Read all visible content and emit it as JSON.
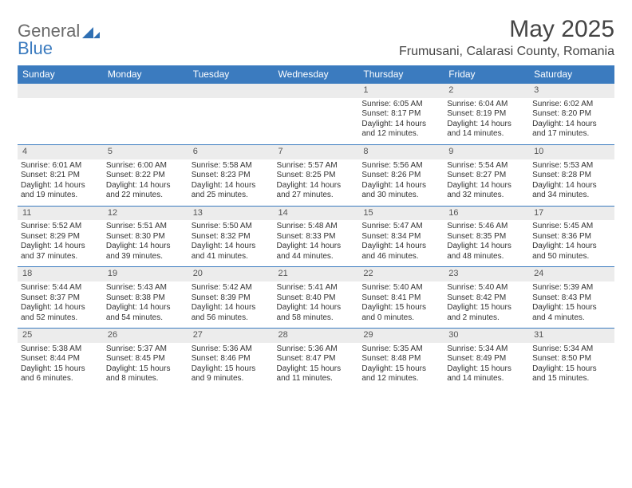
{
  "logo": {
    "text1": "General",
    "text2": "Blue"
  },
  "title": "May 2025",
  "location": "Frumusani, Calarasi County, Romania",
  "colors": {
    "header_bg": "#3b7bbf",
    "header_txt": "#ffffff",
    "daynum_bg": "#ececec",
    "border": "#3b7bbf"
  },
  "columns": [
    "Sunday",
    "Monday",
    "Tuesday",
    "Wednesday",
    "Thursday",
    "Friday",
    "Saturday"
  ],
  "weeks": [
    [
      null,
      null,
      null,
      null,
      {
        "n": "1",
        "sr": "6:05 AM",
        "ss": "8:17 PM",
        "dl": "14 hours and 12 minutes."
      },
      {
        "n": "2",
        "sr": "6:04 AM",
        "ss": "8:19 PM",
        "dl": "14 hours and 14 minutes."
      },
      {
        "n": "3",
        "sr": "6:02 AM",
        "ss": "8:20 PM",
        "dl": "14 hours and 17 minutes."
      }
    ],
    [
      {
        "n": "4",
        "sr": "6:01 AM",
        "ss": "8:21 PM",
        "dl": "14 hours and 19 minutes."
      },
      {
        "n": "5",
        "sr": "6:00 AM",
        "ss": "8:22 PM",
        "dl": "14 hours and 22 minutes."
      },
      {
        "n": "6",
        "sr": "5:58 AM",
        "ss": "8:23 PM",
        "dl": "14 hours and 25 minutes."
      },
      {
        "n": "7",
        "sr": "5:57 AM",
        "ss": "8:25 PM",
        "dl": "14 hours and 27 minutes."
      },
      {
        "n": "8",
        "sr": "5:56 AM",
        "ss": "8:26 PM",
        "dl": "14 hours and 30 minutes."
      },
      {
        "n": "9",
        "sr": "5:54 AM",
        "ss": "8:27 PM",
        "dl": "14 hours and 32 minutes."
      },
      {
        "n": "10",
        "sr": "5:53 AM",
        "ss": "8:28 PM",
        "dl": "14 hours and 34 minutes."
      }
    ],
    [
      {
        "n": "11",
        "sr": "5:52 AM",
        "ss": "8:29 PM",
        "dl": "14 hours and 37 minutes."
      },
      {
        "n": "12",
        "sr": "5:51 AM",
        "ss": "8:30 PM",
        "dl": "14 hours and 39 minutes."
      },
      {
        "n": "13",
        "sr": "5:50 AM",
        "ss": "8:32 PM",
        "dl": "14 hours and 41 minutes."
      },
      {
        "n": "14",
        "sr": "5:48 AM",
        "ss": "8:33 PM",
        "dl": "14 hours and 44 minutes."
      },
      {
        "n": "15",
        "sr": "5:47 AM",
        "ss": "8:34 PM",
        "dl": "14 hours and 46 minutes."
      },
      {
        "n": "16",
        "sr": "5:46 AM",
        "ss": "8:35 PM",
        "dl": "14 hours and 48 minutes."
      },
      {
        "n": "17",
        "sr": "5:45 AM",
        "ss": "8:36 PM",
        "dl": "14 hours and 50 minutes."
      }
    ],
    [
      {
        "n": "18",
        "sr": "5:44 AM",
        "ss": "8:37 PM",
        "dl": "14 hours and 52 minutes."
      },
      {
        "n": "19",
        "sr": "5:43 AM",
        "ss": "8:38 PM",
        "dl": "14 hours and 54 minutes."
      },
      {
        "n": "20",
        "sr": "5:42 AM",
        "ss": "8:39 PM",
        "dl": "14 hours and 56 minutes."
      },
      {
        "n": "21",
        "sr": "5:41 AM",
        "ss": "8:40 PM",
        "dl": "14 hours and 58 minutes."
      },
      {
        "n": "22",
        "sr": "5:40 AM",
        "ss": "8:41 PM",
        "dl": "15 hours and 0 minutes."
      },
      {
        "n": "23",
        "sr": "5:40 AM",
        "ss": "8:42 PM",
        "dl": "15 hours and 2 minutes."
      },
      {
        "n": "24",
        "sr": "5:39 AM",
        "ss": "8:43 PM",
        "dl": "15 hours and 4 minutes."
      }
    ],
    [
      {
        "n": "25",
        "sr": "5:38 AM",
        "ss": "8:44 PM",
        "dl": "15 hours and 6 minutes."
      },
      {
        "n": "26",
        "sr": "5:37 AM",
        "ss": "8:45 PM",
        "dl": "15 hours and 8 minutes."
      },
      {
        "n": "27",
        "sr": "5:36 AM",
        "ss": "8:46 PM",
        "dl": "15 hours and 9 minutes."
      },
      {
        "n": "28",
        "sr": "5:36 AM",
        "ss": "8:47 PM",
        "dl": "15 hours and 11 minutes."
      },
      {
        "n": "29",
        "sr": "5:35 AM",
        "ss": "8:48 PM",
        "dl": "15 hours and 12 minutes."
      },
      {
        "n": "30",
        "sr": "5:34 AM",
        "ss": "8:49 PM",
        "dl": "15 hours and 14 minutes."
      },
      {
        "n": "31",
        "sr": "5:34 AM",
        "ss": "8:50 PM",
        "dl": "15 hours and 15 minutes."
      }
    ]
  ],
  "labels": {
    "sunrise": "Sunrise: ",
    "sunset": "Sunset: ",
    "daylight": "Daylight: "
  }
}
